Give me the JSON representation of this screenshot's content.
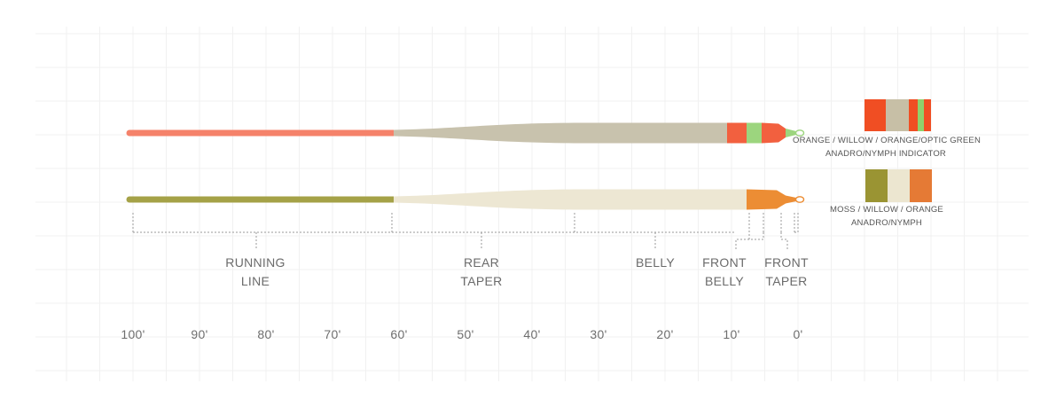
{
  "lines": [
    {
      "name": "line-1",
      "swatch_colors": [
        "#f04e23",
        "#c7bfa6",
        "#f04e23",
        "#8fd16c",
        "#f04e23"
      ],
      "swatch_caption": [
        "ORANGE / WILLOW / ORANGE/OPTIC GREEN",
        "ANADRO/NYMPH INDICATOR"
      ],
      "colors": {
        "running": "#f5826a",
        "body": "#c8c2ad",
        "orange": "#f2603f",
        "green": "#9cd57e"
      }
    },
    {
      "name": "line-2",
      "swatch_colors": [
        "#9a9433",
        "#ece6d0",
        "#e57a35"
      ],
      "swatch_caption": [
        "MOSS / WILLOW / ORANGE",
        "ANADRO/NYMPH"
      ],
      "colors": {
        "running": "#a5a247",
        "body": "#ede7d3",
        "orange": "#ec8d34"
      }
    }
  ],
  "sections": [
    {
      "key": "running",
      "lines": [
        "RUNNING",
        "LINE"
      ]
    },
    {
      "key": "rear",
      "lines": [
        "REAR",
        "TAPER"
      ]
    },
    {
      "key": "belly",
      "lines": [
        "BELLY"
      ]
    },
    {
      "key": "front_belly",
      "lines": [
        "FRONT",
        "BELLY"
      ]
    },
    {
      "key": "front_taper",
      "lines": [
        "FRONT",
        "TAPER"
      ]
    }
  ],
  "axis_ticks": [
    "100'",
    "90'",
    "80'",
    "70'",
    "60'",
    "50'",
    "40'",
    "30'",
    "20'",
    "10'",
    "0'"
  ],
  "colors": {
    "grid": "#f1f1f1",
    "dim": "#9a9a9a",
    "text": "#6b6b6b"
  }
}
